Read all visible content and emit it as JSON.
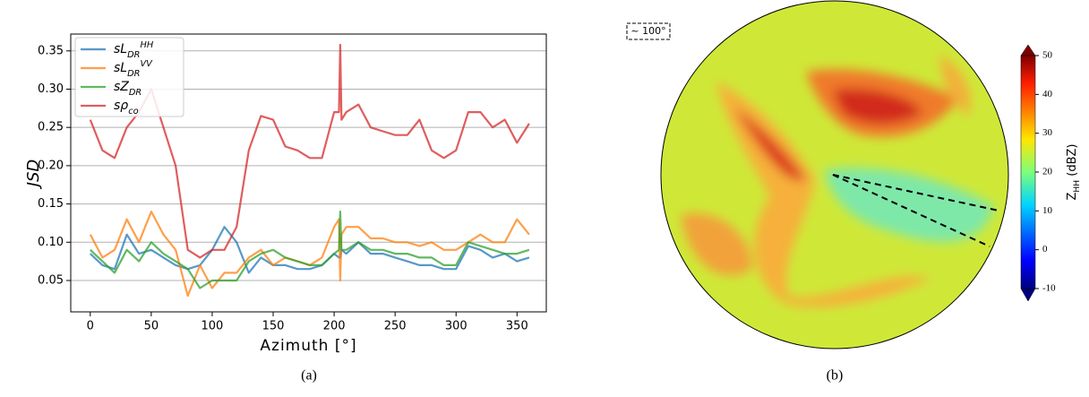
{
  "chart_data": [
    {
      "type": "line",
      "xlabel": "Azimuth [°]",
      "ylabel": "JSD",
      "caption": "(a)",
      "x": [
        0,
        10,
        20,
        30,
        40,
        50,
        60,
        70,
        80,
        90,
        100,
        110,
        120,
        130,
        140,
        150,
        160,
        170,
        180,
        190,
        200,
        204,
        205,
        206,
        210,
        220,
        230,
        240,
        250,
        260,
        270,
        280,
        290,
        300,
        310,
        320,
        330,
        340,
        350,
        360
      ],
      "series": [
        {
          "name": "sL_{DR}^{HH}",
          "color": "#1f77b4",
          "values": [
            0.085,
            0.07,
            0.065,
            0.11,
            0.085,
            0.09,
            0.08,
            0.07,
            0.065,
            0.07,
            0.09,
            0.12,
            0.1,
            0.06,
            0.08,
            0.07,
            0.07,
            0.065,
            0.065,
            0.07,
            0.085,
            0.08,
            0.08,
            0.09,
            0.085,
            0.1,
            0.085,
            0.085,
            0.08,
            0.075,
            0.07,
            0.07,
            0.065,
            0.065,
            0.095,
            0.09,
            0.08,
            0.085,
            0.075,
            0.08
          ]
        },
        {
          "name": "sL_{DR}^{VV}",
          "color": "#ff7f0e",
          "values": [
            0.11,
            0.08,
            0.09,
            0.13,
            0.1,
            0.14,
            0.11,
            0.09,
            0.03,
            0.07,
            0.04,
            0.06,
            0.06,
            0.08,
            0.09,
            0.07,
            0.08,
            0.075,
            0.07,
            0.08,
            0.12,
            0.13,
            0.05,
            0.11,
            0.12,
            0.12,
            0.105,
            0.105,
            0.1,
            0.1,
            0.095,
            0.1,
            0.09,
            0.09,
            0.1,
            0.11,
            0.1,
            0.1,
            0.13,
            0.11
          ]
        },
        {
          "name": "sZ_{DR}",
          "color": "#2ca02c",
          "values": [
            0.09,
            0.075,
            0.06,
            0.09,
            0.075,
            0.1,
            0.085,
            0.075,
            0.065,
            0.04,
            0.05,
            0.05,
            0.05,
            0.075,
            0.085,
            0.09,
            0.08,
            0.075,
            0.07,
            0.07,
            0.085,
            0.09,
            0.14,
            0.09,
            0.09,
            0.1,
            0.09,
            0.09,
            0.085,
            0.085,
            0.08,
            0.08,
            0.07,
            0.07,
            0.1,
            0.095,
            0.09,
            0.085,
            0.085,
            0.09
          ]
        },
        {
          "name": "sρ_{co}",
          "color": "#d62728",
          "values": [
            0.26,
            0.22,
            0.21,
            0.25,
            0.27,
            0.3,
            0.25,
            0.2,
            0.09,
            0.08,
            0.09,
            0.09,
            0.12,
            0.22,
            0.265,
            0.26,
            0.225,
            0.22,
            0.21,
            0.21,
            0.27,
            0.27,
            0.358,
            0.26,
            0.27,
            0.28,
            0.25,
            0.245,
            0.24,
            0.24,
            0.26,
            0.22,
            0.21,
            0.22,
            0.27,
            0.27,
            0.25,
            0.26,
            0.23,
            0.255
          ]
        }
      ],
      "xlim": [
        -16,
        374
      ],
      "xticks": [
        0,
        50,
        100,
        150,
        200,
        250,
        300,
        350
      ],
      "ylim": [
        0.009,
        0.372
      ],
      "yticks": [
        0.05,
        {
          "value": 0.1,
          "label": "0.10"
        },
        0.15,
        {
          "value": 0.2,
          "label": "0.20"
        },
        0.25,
        {
          "value": 0.3,
          "label": "0.30"
        },
        0.35
      ],
      "grid": "y",
      "legend": "upper left"
    },
    {
      "type": "ppi",
      "annotation": "~ 100°",
      "caption": "(b)",
      "colorbar": {
        "label": "Z_{HH} (dBZ)",
        "ylim": [
          -10,
          50
        ],
        "yticks": [
          -10,
          0,
          10,
          20,
          30,
          40,
          50
        ]
      }
    }
  ]
}
